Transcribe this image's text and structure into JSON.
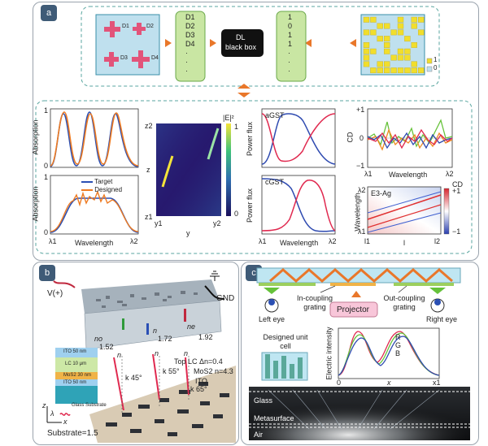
{
  "panel_a": {
    "label": "a",
    "pixel_legend": {
      "one": "1",
      "zero": "0"
    },
    "d_list": [
      "D1",
      "D2",
      "D3",
      "D4",
      "·",
      "·",
      "·"
    ],
    "unit_labels": [
      "D1",
      "D2",
      "D3",
      "D4"
    ],
    "black_box": {
      "line1": "DL",
      "line2": "black box"
    },
    "bits": [
      "1",
      "0",
      "1",
      "1",
      "·",
      "·",
      "·"
    ],
    "abs_top": {
      "ylabel": "Absorption",
      "y0": "0",
      "y1": "1"
    },
    "abs_bottom": {
      "ylabel": "Absorption",
      "y0": "0",
      "y1": "1",
      "xlabel": "Wavelength",
      "x0": "λ1",
      "x1": "λ2"
    },
    "legend": {
      "target": "Target",
      "designed": "Designed"
    },
    "field": {
      "title": "|E|²",
      "c1": "1",
      "c0": "0",
      "ylabel": "z",
      "z2": "z2",
      "z1": "z1",
      "xlabel": "y",
      "y1": "y1",
      "y2": "y2"
    },
    "flux_top": {
      "name": "aGST",
      "ylabel": "Power flux"
    },
    "flux_bottom": {
      "name": "cGST",
      "ylabel": "Power flux",
      "xlabel": "Wavelength",
      "x0": "λ1",
      "x1": "λ2"
    },
    "cd": {
      "ylabel": "CD",
      "yp": "+1",
      "y0": "0",
      "ym": "−1",
      "xlabel": "Wavelength",
      "x0": "λ1",
      "x1": "λ2"
    },
    "cdmap": {
      "title": "E3-Ag",
      "cb_label": "CD",
      "cb_top": "+1",
      "cb_bot": "−1",
      "ylabel": "Wavelength",
      "y2": "λ2",
      "y1": "λ1",
      "xlabel": "l",
      "x1": "l1",
      "x2": "l2"
    }
  },
  "panel_b": {
    "label": "b",
    "vplus": "V(+)",
    "gnd": "GND",
    "n_label": "n",
    "n_val": "1.72",
    "ne_label": "ne",
    "ne_val": "1.92",
    "no_label": "no",
    "no_val": "1.52",
    "layers": [
      "ITO 50 nm",
      "LC 10 μm",
      "MoS2 30 nm",
      "ITO 50 nm"
    ],
    "stack_z": "z",
    "stack_x": "x",
    "stack_lambda": "λ",
    "glass": "Glass Substrate",
    "top_lc": "Top LC Δn=0.4",
    "mos2": "MoS2  n=4.3",
    "ito": "ITO",
    "substrate": "Substrate=1.5",
    "angles": [
      "k 45°",
      "k 55°",
      "k 65°"
    ],
    "n_axis": "n"
  },
  "panel_c": {
    "label": "c",
    "left_eye": "Left eye",
    "right_eye": "Right eye",
    "in_coupling": "In-coupling grating",
    "out_coupling": "Out-coupling grating",
    "projector": "Projector",
    "unit_cell": "Designed unit cell",
    "intensity": {
      "ylabel": "Electric intensity",
      "xlabel": "x",
      "x0": "0",
      "x1": "x1",
      "R": "R",
      "G": "G",
      "B": "B"
    },
    "layers": {
      "glass": "Glass",
      "meta": "Metasurface",
      "air": "Air"
    }
  },
  "colors": {
    "frame": "#3f5b77",
    "dash": "#5aa6a0",
    "orange": "#e9772a",
    "green": "#c9e6a3",
    "target": "#2b4fb3",
    "designed": "#ee7b22",
    "red": "#e0294f",
    "cd_green": "#66c23a",
    "cd_orange": "#ee8a22",
    "cd_blue": "#2e4ab0"
  }
}
